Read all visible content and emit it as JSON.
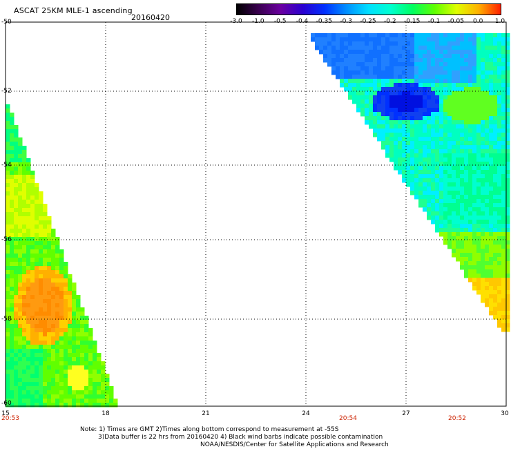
{
  "header": {
    "title": "ASCAT 25KM MLE-1 ascending",
    "date": "20160420"
  },
  "colorbar": {
    "labels": [
      "-3.0",
      "-1.0",
      "-0.5",
      "-0.4",
      "-0.35",
      "-0.3",
      "-0.25",
      "-0.2",
      "-0.15",
      "-0.1",
      "-0.05",
      "0.0",
      "1.0"
    ],
    "colors": [
      "#000000",
      "#3a0050",
      "#6a00a0",
      "#2a00d0",
      "#0030ff",
      "#0090ff",
      "#00e0ff",
      "#00ffd0",
      "#00ff60",
      "#60ff00",
      "#e0ff00",
      "#ffb000",
      "#ff2000"
    ]
  },
  "axes": {
    "lat_labels": [
      "-50",
      "-52",
      "-54",
      "-56",
      "-58",
      "-60"
    ],
    "lon_labels": [
      "15",
      "18",
      "21",
      "24",
      "27",
      "30"
    ],
    "time_labels": [
      "20:53",
      "20:54",
      "20:52"
    ]
  },
  "notes": {
    "line1": "Note: 1) Times are GMT 2)Times along bottom correspond to measurement at -55S",
    "line2": "3)Data buffer is 22 hrs from 20160420 4) Black wind barbs indicate possible contamination",
    "line3": "NOAA/NESDIS/Center for Satellite Applications and Research"
  }
}
